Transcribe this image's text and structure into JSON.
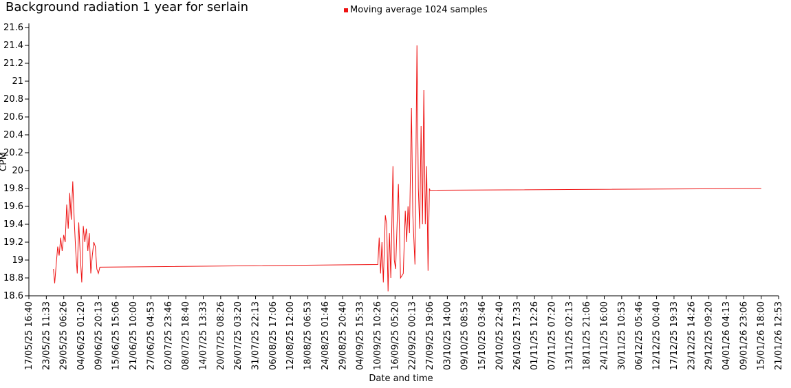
{
  "chart_data": {
    "type": "line",
    "title": "Background radiation 1 year for serlain",
    "x_label": "Date and time",
    "y_label": "CPM",
    "ylim": [
      18.6,
      21.6
    ],
    "yticks": [
      18.6,
      18.8,
      19,
      19.2,
      19.4,
      19.6,
      19.8,
      20,
      20.2,
      20.4,
      20.6,
      20.8,
      21,
      21.2,
      21.4,
      21.6
    ],
    "xlim": [
      "17/05/25 16:40",
      "21/01/26 12:53"
    ],
    "xticks": [
      "17/05/25 16:40",
      "23/05/25 11:33",
      "29/05/25 06:26",
      "04/06/25 01:20",
      "09/06/25 20:13",
      "15/06/25 15:06",
      "21/06/25 10:00",
      "27/06/25 04:53",
      "02/07/25 23:46",
      "08/07/25 18:40",
      "14/07/25 13:33",
      "20/07/25 08:26",
      "26/07/25 03:20",
      "31/07/25 22:13",
      "06/08/25 17:06",
      "12/08/25 12:00",
      "18/08/25 06:53",
      "24/08/25 01:46",
      "29/08/25 20:40",
      "04/09/25 15:33",
      "10/09/25 10:26",
      "16/09/25 05:20",
      "22/09/25 00:13",
      "27/09/25 19:06",
      "03/10/25 14:00",
      "09/10/25 08:53",
      "15/10/25 03:46",
      "20/10/25 22:40",
      "26/10/25 17:33",
      "01/11/25 12:26",
      "07/11/25 07:20",
      "13/11/25 02:13",
      "18/11/25 21:06",
      "24/11/25 16:00",
      "30/11/25 10:53",
      "06/12/25 05:46",
      "12/12/25 00:40",
      "17/12/25 19:33",
      "23/12/25 14:26",
      "29/12/25 09:20",
      "04/01/26 04:13",
      "09/01/26 23:06",
      "15/01/26 18:00",
      "21/01/26 12:53"
    ],
    "legend": "top",
    "series": [
      {
        "name": "Moving average 1024 samples",
        "color": "#ee1111",
        "x": [
          "25/05/25 20:00",
          "26/05/25 06:00",
          "26/05/25 18:00",
          "27/05/25 06:00",
          "27/05/25 18:00",
          "28/05/25 06:00",
          "28/05/25 18:00",
          "29/05/25 06:00",
          "29/05/25 18:00",
          "30/05/25 06:00",
          "30/05/25 18:00",
          "31/05/25 06:00",
          "31/05/25 18:00",
          "01/06/25 06:00",
          "01/06/25 18:00",
          "02/06/25 06:00",
          "02/06/25 18:00",
          "03/06/25 06:00",
          "03/06/25 18:00",
          "04/06/25 06:00",
          "04/06/25 18:00",
          "05/06/25 06:00",
          "05/06/25 18:00",
          "06/06/25 06:00",
          "06/06/25 18:00",
          "07/06/25 06:00",
          "07/06/25 18:00",
          "08/06/25 06:00",
          "08/06/25 18:00",
          "09/06/25 06:00",
          "09/06/25 18:00",
          "10/06/25 06:00",
          "10/09/25 12:00",
          "10/09/25 23:00",
          "11/09/25 10:00",
          "11/09/25 21:00",
          "12/09/25 08:00",
          "13/09/25 00:00",
          "13/09/25 11:00",
          "13/09/25 22:00",
          "14/09/25 09:00",
          "14/09/25 20:00",
          "15/09/25 13:00",
          "15/09/25 23:00",
          "16/09/25 10:00",
          "17/09/25 08:00",
          "18/09/25 01:00",
          "18/09/25 23:00",
          "19/09/25 15:00",
          "20/09/25 02:00",
          "20/09/25 13:00",
          "21/09/25 00:00",
          "21/09/25 16:00",
          "22/09/25 03:00",
          "22/09/25 20:00",
          "23/09/25 12:00",
          "23/09/25 23:00",
          "24/09/25 10:00",
          "24/09/25 21:00",
          "25/09/25 08:00",
          "25/09/25 19:00",
          "26/09/25 06:00",
          "26/09/25 17:00",
          "27/09/25 04:00",
          "27/09/25 15:00",
          "27/09/25 20:00",
          "15/01/26 18:00"
        ],
        "values": [
          18.9,
          18.74,
          18.95,
          19.15,
          19.05,
          19.25,
          19.1,
          19.28,
          19.2,
          19.62,
          19.35,
          19.75,
          19.45,
          19.88,
          19.45,
          19.1,
          18.85,
          19.42,
          19.05,
          18.75,
          19.38,
          19.2,
          19.35,
          19.1,
          19.3,
          18.85,
          19.05,
          19.2,
          19.15,
          18.9,
          18.85,
          18.92,
          18.95,
          19.25,
          18.85,
          19.2,
          18.75,
          19.5,
          19.4,
          18.65,
          19.3,
          18.8,
          20.05,
          19.0,
          18.9,
          19.85,
          18.8,
          18.85,
          19.55,
          19.2,
          19.6,
          19.3,
          20.7,
          19.5,
          18.95,
          21.4,
          19.8,
          19.35,
          20.5,
          19.4,
          20.9,
          19.4,
          20.05,
          18.88,
          19.8,
          19.78,
          19.8
        ]
      }
    ]
  }
}
